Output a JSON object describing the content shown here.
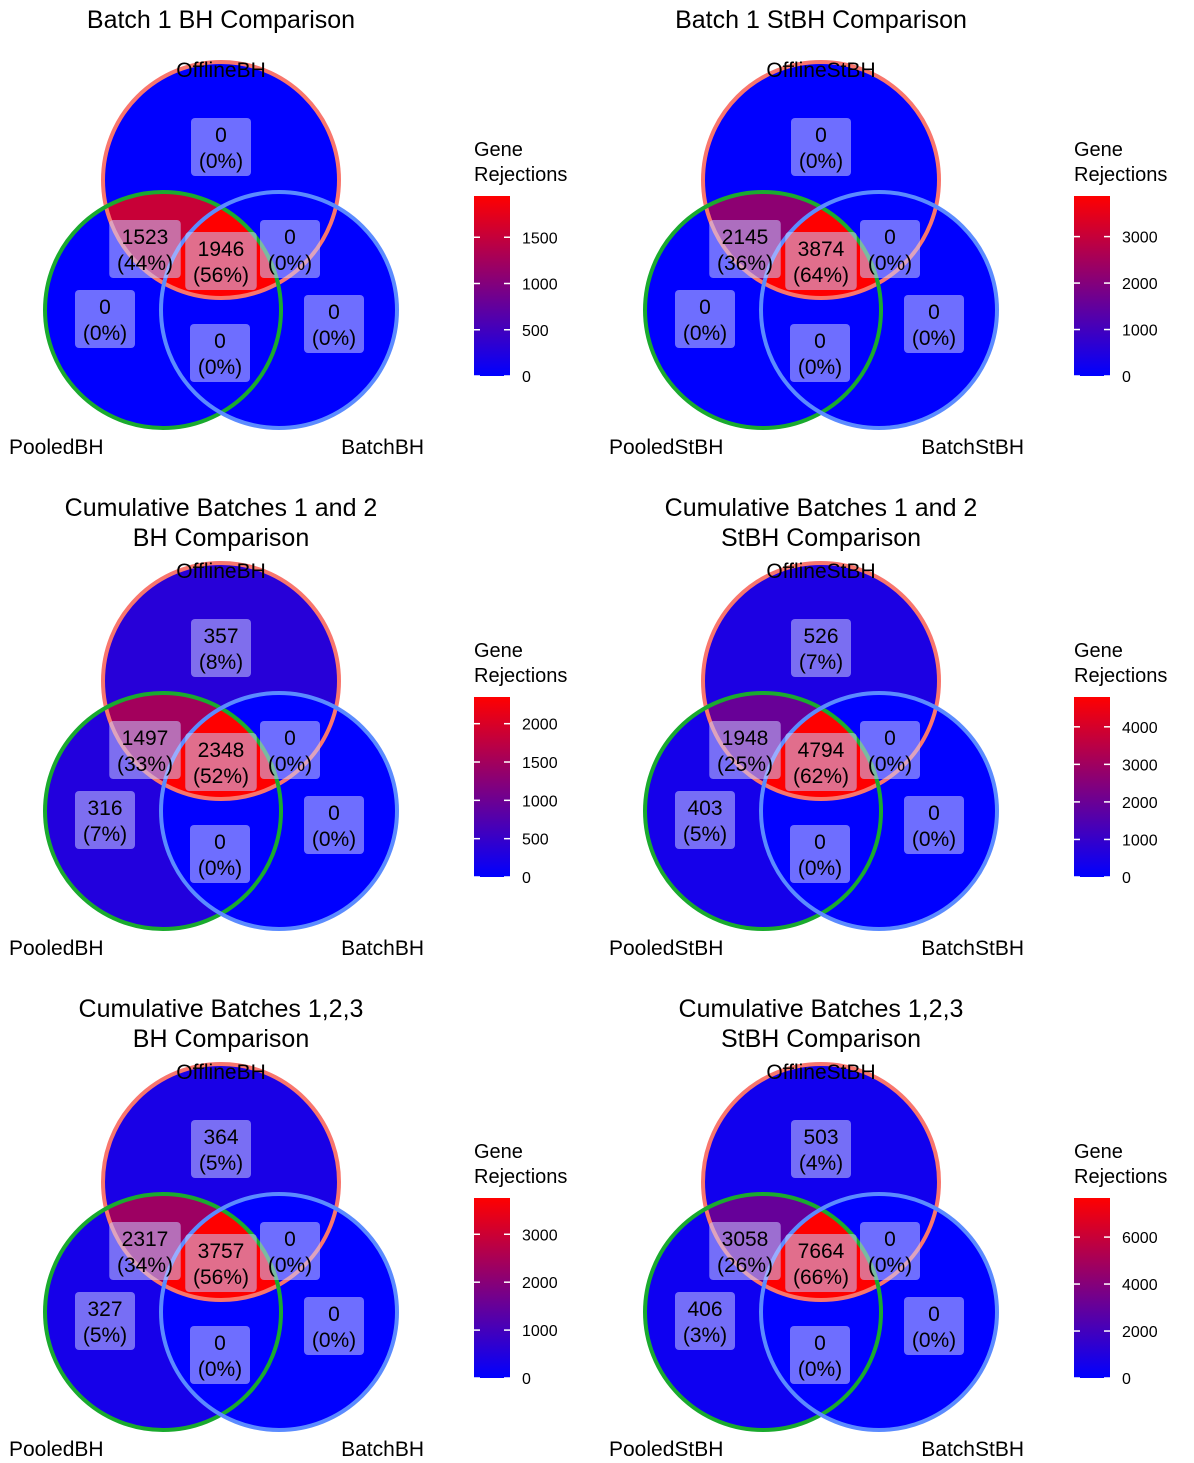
{
  "colors": {
    "low": "#0000ff",
    "high": "#ff0000",
    "offline_border": "#f8766d",
    "pooled_border": "#1aaa2e",
    "batch_border": "#5b8bff",
    "label_box": "#c8c8ff"
  },
  "chart_data": [
    {
      "type": "venn",
      "title": [
        "Batch 1 BH Comparison"
      ],
      "sets": {
        "offline": "OfflineBH",
        "pooled": "PooledBH",
        "batch": "BatchBH"
      },
      "regions": {
        "offline_only": {
          "count": "0",
          "pct": "(0%)",
          "value": 0
        },
        "offline_pooled": {
          "count": "1523",
          "pct": "(44%)",
          "value": 1523
        },
        "all_three": {
          "count": "1946",
          "pct": "(56%)",
          "value": 1946
        },
        "offline_batch": {
          "count": "0",
          "pct": "(0%)",
          "value": 0
        },
        "pooled_only": {
          "count": "0",
          "pct": "(0%)",
          "value": 0
        },
        "pooled_batch": {
          "count": "0",
          "pct": "(0%)",
          "value": 0
        },
        "batch_only": {
          "count": "0",
          "pct": "(0%)",
          "value": 0
        }
      },
      "legend": {
        "title": [
          "Gene",
          "Rejections"
        ],
        "ticks": [
          0,
          500,
          1000,
          1500
        ],
        "tick_labels": [
          "0",
          "500",
          "1000",
          "1500"
        ],
        "range": [
          0,
          1946
        ]
      }
    },
    {
      "type": "venn",
      "title": [
        "Batch 1 StBH Comparison"
      ],
      "sets": {
        "offline": "OfflineStBH",
        "pooled": "PooledStBH",
        "batch": "BatchStBH"
      },
      "regions": {
        "offline_only": {
          "count": "0",
          "pct": "(0%)",
          "value": 0
        },
        "offline_pooled": {
          "count": "2145",
          "pct": "(36%)",
          "value": 2145
        },
        "all_three": {
          "count": "3874",
          "pct": "(64%)",
          "value": 3874
        },
        "offline_batch": {
          "count": "0",
          "pct": "(0%)",
          "value": 0
        },
        "pooled_only": {
          "count": "0",
          "pct": "(0%)",
          "value": 0
        },
        "pooled_batch": {
          "count": "0",
          "pct": "(0%)",
          "value": 0
        },
        "batch_only": {
          "count": "0",
          "pct": "(0%)",
          "value": 0
        }
      },
      "legend": {
        "title": [
          "Gene",
          "Rejections"
        ],
        "ticks": [
          0,
          1000,
          2000,
          3000
        ],
        "tick_labels": [
          "0",
          "1000",
          "2000",
          "3000"
        ],
        "range": [
          0,
          3874
        ]
      }
    },
    {
      "type": "venn",
      "title": [
        "Cumulative Batches 1 and 2",
        "BH Comparison"
      ],
      "sets": {
        "offline": "OfflineBH",
        "pooled": "PooledBH",
        "batch": "BatchBH"
      },
      "regions": {
        "offline_only": {
          "count": "357",
          "pct": "(8%)",
          "value": 357
        },
        "offline_pooled": {
          "count": "1497",
          "pct": "(33%)",
          "value": 1497
        },
        "all_three": {
          "count": "2348",
          "pct": "(52%)",
          "value": 2348
        },
        "offline_batch": {
          "count": "0",
          "pct": "(0%)",
          "value": 0
        },
        "pooled_only": {
          "count": "316",
          "pct": "(7%)",
          "value": 316
        },
        "pooled_batch": {
          "count": "0",
          "pct": "(0%)",
          "value": 0
        },
        "batch_only": {
          "count": "0",
          "pct": "(0%)",
          "value": 0
        }
      },
      "legend": {
        "title": [
          "Gene",
          "Rejections"
        ],
        "ticks": [
          0,
          500,
          1000,
          1500,
          2000
        ],
        "tick_labels": [
          "0",
          "500",
          "1000",
          "1500",
          "2000"
        ],
        "range": [
          0,
          2348
        ]
      }
    },
    {
      "type": "venn",
      "title": [
        "Cumulative Batches 1 and 2",
        "StBH Comparison"
      ],
      "sets": {
        "offline": "OfflineStBH",
        "pooled": "PooledStBH",
        "batch": "BatchStBH"
      },
      "regions": {
        "offline_only": {
          "count": "526",
          "pct": "(7%)",
          "value": 526
        },
        "offline_pooled": {
          "count": "1948",
          "pct": "(25%)",
          "value": 1948
        },
        "all_three": {
          "count": "4794",
          "pct": "(62%)",
          "value": 4794
        },
        "offline_batch": {
          "count": "0",
          "pct": "(0%)",
          "value": 0
        },
        "pooled_only": {
          "count": "403",
          "pct": "(5%)",
          "value": 403
        },
        "pooled_batch": {
          "count": "0",
          "pct": "(0%)",
          "value": 0
        },
        "batch_only": {
          "count": "0",
          "pct": "(0%)",
          "value": 0
        }
      },
      "legend": {
        "title": [
          "Gene",
          "Rejections"
        ],
        "ticks": [
          0,
          1000,
          2000,
          3000,
          4000
        ],
        "tick_labels": [
          "0",
          "1000",
          "2000",
          "3000",
          "4000"
        ],
        "range": [
          0,
          4794
        ]
      }
    },
    {
      "type": "venn",
      "title": [
        "Cumulative Batches 1,2,3",
        "BH Comparison"
      ],
      "sets": {
        "offline": "OfflineBH",
        "pooled": "PooledBH",
        "batch": "BatchBH"
      },
      "regions": {
        "offline_only": {
          "count": "364",
          "pct": "(5%)",
          "value": 364
        },
        "offline_pooled": {
          "count": "2317",
          "pct": "(34%)",
          "value": 2317
        },
        "all_three": {
          "count": "3757",
          "pct": "(56%)",
          "value": 3757
        },
        "offline_batch": {
          "count": "0",
          "pct": "(0%)",
          "value": 0
        },
        "pooled_only": {
          "count": "327",
          "pct": "(5%)",
          "value": 327
        },
        "pooled_batch": {
          "count": "0",
          "pct": "(0%)",
          "value": 0
        },
        "batch_only": {
          "count": "0",
          "pct": "(0%)",
          "value": 0
        }
      },
      "legend": {
        "title": [
          "Gene",
          "Rejections"
        ],
        "ticks": [
          0,
          1000,
          2000,
          3000
        ],
        "tick_labels": [
          "0",
          "1000",
          "2000",
          "3000"
        ],
        "range": [
          0,
          3757
        ]
      }
    },
    {
      "type": "venn",
      "title": [
        "Cumulative Batches 1,2,3",
        "StBH Comparison"
      ],
      "sets": {
        "offline": "OfflineStBH",
        "pooled": "PooledStBH",
        "batch": "BatchStBH"
      },
      "regions": {
        "offline_only": {
          "count": "503",
          "pct": "(4%)",
          "value": 503
        },
        "offline_pooled": {
          "count": "3058",
          "pct": "(26%)",
          "value": 3058
        },
        "all_three": {
          "count": "7664",
          "pct": "(66%)",
          "value": 7664
        },
        "offline_batch": {
          "count": "0",
          "pct": "(0%)",
          "value": 0
        },
        "pooled_only": {
          "count": "406",
          "pct": "(3%)",
          "value": 406
        },
        "pooled_batch": {
          "count": "0",
          "pct": "(0%)",
          "value": 0
        },
        "batch_only": {
          "count": "0",
          "pct": "(0%)",
          "value": 0
        }
      },
      "legend": {
        "title": [
          "Gene",
          "Rejections"
        ],
        "ticks": [
          0,
          2000,
          4000,
          6000
        ],
        "tick_labels": [
          "0",
          "2000",
          "4000",
          "6000"
        ],
        "range": [
          0,
          7664
        ]
      }
    }
  ]
}
